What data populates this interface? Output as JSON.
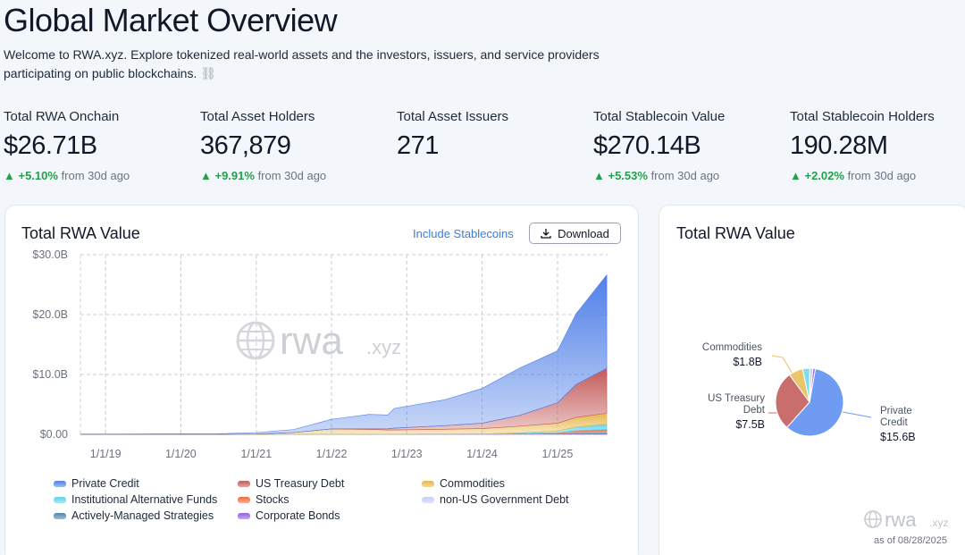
{
  "header": {
    "title": "Global Market Overview",
    "subtitle": "Welcome to RWA.xyz. Explore tokenized real-world assets and the investors, issuers, and service providers participating on public blockchains."
  },
  "stats": [
    {
      "label": "Total RWA Onchain",
      "value": "$26.71B",
      "change": "+5.10%",
      "suffix": "from 30d ago"
    },
    {
      "label": "Total Asset Holders",
      "value": "367,879",
      "change": "+9.91%",
      "suffix": "from 30d ago"
    },
    {
      "label": "Total Asset Issuers",
      "value": "271"
    },
    {
      "label": "Total Stablecoin Value",
      "value": "$270.14B",
      "change": "+5.53%",
      "suffix": "from 30d ago"
    },
    {
      "label": "Total Stablecoin Holders",
      "value": "190.28M",
      "change": "+2.02%",
      "suffix": "from 30d ago"
    }
  ],
  "buttons": {
    "toggle": "Include Stablecoins",
    "download": "Download"
  },
  "footer": {
    "logo": "rwa",
    "logo_suffix": ".xyz",
    "as_of": "as of 08/28/2025"
  },
  "chart_data": [
    {
      "type": "stacked_area",
      "title": "Total RWA Value",
      "watermark": "rwa",
      "watermark_suffix": ".xyz",
      "x": [
        "2018-09-01",
        "2019-07-01",
        "2020-07-01",
        "2021-01-01",
        "2021-07-01",
        "2022-01-01",
        "2022-07-01",
        "2022-10-01",
        "2022-11-01",
        "2023-07-01",
        "2024-01-01",
        "2024-07-01",
        "2025-01-01",
        "2025-04-01",
        "2025-08-28"
      ],
      "xlim": [
        "2018-09-01",
        "2025-09-01"
      ],
      "xticks": [
        {
          "value": "2019-01-01",
          "label": "1/1/19"
        },
        {
          "value": "2020-01-01",
          "label": "1/1/20"
        },
        {
          "value": "2021-01-01",
          "label": "1/1/21"
        },
        {
          "value": "2022-01-01",
          "label": "1/1/22"
        },
        {
          "value": "2023-01-01",
          "label": "1/1/23"
        },
        {
          "value": "2024-01-01",
          "label": "1/1/24"
        },
        {
          "value": "2025-01-01",
          "label": "1/1/25"
        }
      ],
      "ylim": [
        0,
        30
      ],
      "yticks": [
        {
          "value": 0,
          "label": "$0.00"
        },
        {
          "value": 10,
          "label": "$10.0B"
        },
        {
          "value": 20,
          "label": "$20.0B"
        },
        {
          "value": 30,
          "label": "$30.0B"
        }
      ],
      "grid": true,
      "series": [
        {
          "name": "Private Credit",
          "color": "#4f7fe8",
          "values": [
            0.05,
            0.06,
            0.1,
            0.25,
            0.5,
            1.6,
            2.4,
            2.3,
            3.3,
            4.3,
            5.8,
            7.9,
            8.7,
            11.8,
            15.6
          ]
        },
        {
          "name": "US Treasury Debt",
          "color": "#c45a5a",
          "values": [
            0,
            0,
            0,
            0,
            0,
            0,
            0.1,
            0.2,
            0.3,
            0.6,
            0.9,
            1.8,
            3.4,
            5.5,
            7.5
          ]
        },
        {
          "name": "Commodities",
          "color": "#e6b84c",
          "values": [
            0,
            0,
            0,
            0.05,
            0.3,
            0.9,
            0.8,
            0.7,
            0.7,
            0.8,
            0.9,
            1.1,
            1.3,
            1.6,
            1.8
          ]
        },
        {
          "name": "Institutional Alternative Funds",
          "color": "#5fd3ea",
          "values": [
            0,
            0,
            0,
            0,
            0,
            0,
            0,
            0,
            0,
            0,
            0,
            0.1,
            0.3,
            0.6,
            0.9
          ]
        },
        {
          "name": "Stocks",
          "color": "#ef6a3c",
          "values": [
            0,
            0,
            0,
            0,
            0,
            0,
            0,
            0,
            0,
            0,
            0,
            0.01,
            0.02,
            0.3,
            0.4
          ]
        },
        {
          "name": "non-US Government Debt",
          "color": "#c3d0f2",
          "values": [
            0,
            0,
            0,
            0,
            0,
            0,
            0.01,
            0.01,
            0.01,
            0.02,
            0.03,
            0.05,
            0.08,
            0.1,
            0.12
          ]
        },
        {
          "name": "Actively-Managed Strategies",
          "color": "#4f86ad",
          "values": [
            0,
            0,
            0,
            0,
            0,
            0,
            0,
            0,
            0,
            0,
            0,
            0.05,
            0.1,
            0.15,
            0.2
          ]
        },
        {
          "name": "Corporate Bonds",
          "color": "#9560e0",
          "values": [
            0,
            0,
            0,
            0,
            0,
            0.01,
            0.02,
            0.02,
            0.02,
            0.03,
            0.03,
            0.05,
            0.06,
            0.08,
            0.1
          ]
        }
      ]
    },
    {
      "type": "pie",
      "title": "Total RWA Value",
      "categories": [
        "Private Credit",
        "US Treasury Debt",
        "Commodities",
        null,
        null,
        null
      ],
      "values": [
        15.6,
        7.5,
        1.8,
        0.9,
        0.4,
        0.3
      ],
      "value_labels": [
        "$15.6B",
        "$7.5B",
        "$1.8B",
        null,
        null,
        null
      ],
      "colors": [
        "#6f9cf2",
        "#c96d6d",
        "#e9c56b",
        "#7fdcef",
        "#c8d3f2",
        "#9b6be0"
      ]
    }
  ]
}
